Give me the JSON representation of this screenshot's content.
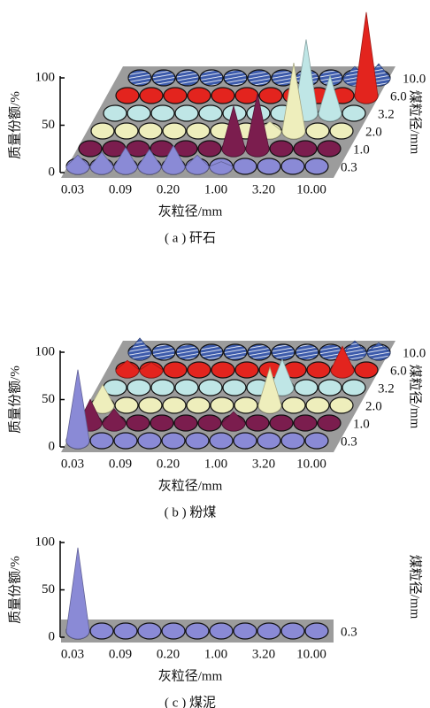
{
  "chart_data": [
    {
      "type": "cone3d",
      "caption": "( a ) 矸石",
      "y_label": "质量份额/%",
      "x_label": "灰粒径/mm",
      "z_label": "煤粒径/mm",
      "ylim": [
        0,
        100
      ],
      "yticks": [
        0,
        50,
        100
      ],
      "categories": [
        "0.03",
        null,
        "0.09",
        null,
        "0.20",
        null,
        "1.00",
        null,
        "3.20",
        null,
        "10.00"
      ],
      "series": [
        {
          "name": "0.3",
          "color": "#8a8ad6",
          "values": [
            12,
            15,
            20,
            18,
            22,
            12,
            5,
            0,
            0,
            0,
            0
          ]
        },
        {
          "name": "1.0",
          "color": "#7b1d4e",
          "values": [
            0,
            0,
            0,
            0,
            0,
            0,
            45,
            58,
            0,
            0,
            0
          ]
        },
        {
          "name": "2.0",
          "color": "#eeeebc",
          "values": [
            0,
            0,
            0,
            0,
            0,
            0,
            0,
            10,
            72,
            0,
            0
          ]
        },
        {
          "name": "3.2",
          "color": "#bfe6e6",
          "values": [
            0,
            0,
            0,
            0,
            0,
            0,
            0,
            0,
            78,
            40,
            0
          ]
        },
        {
          "name": "6.0",
          "color": "#e3241e",
          "values": [
            0,
            0,
            0,
            0,
            0,
            0,
            0,
            0,
            0,
            0,
            88
          ]
        },
        {
          "name": "10.0",
          "color": "#3d5bab",
          "pattern": "hatch",
          "values": [
            0,
            0,
            0,
            0,
            0,
            0,
            0,
            0,
            0,
            12,
            15
          ]
        }
      ]
    },
    {
      "type": "cone3d",
      "caption": "( b ) 粉煤",
      "y_label": "质量份额/%",
      "x_label": "灰粒径/mm",
      "z_label": "煤粒径/mm",
      "ylim": [
        0,
        100
      ],
      "yticks": [
        0,
        50,
        100
      ],
      "categories": [
        "0.03",
        null,
        "0.09",
        null,
        "0.20",
        null,
        "1.00",
        null,
        "3.20",
        null,
        "10.00"
      ],
      "series": [
        {
          "name": "0.3",
          "color": "#8a8ad6",
          "values": [
            75,
            0,
            0,
            0,
            0,
            0,
            0,
            0,
            0,
            0,
            0
          ]
        },
        {
          "name": "1.0",
          "color": "#7b1d4e",
          "values": [
            25,
            15,
            0,
            0,
            0,
            0,
            12,
            0,
            0,
            0,
            0
          ]
        },
        {
          "name": "2.0",
          "color": "#eeeebc",
          "values": [
            22,
            0,
            0,
            0,
            0,
            0,
            0,
            40,
            0,
            0,
            0
          ]
        },
        {
          "name": "3.2",
          "color": "#bfe6e6",
          "values": [
            0,
            0,
            0,
            0,
            0,
            0,
            0,
            30,
            0,
            0,
            0
          ]
        },
        {
          "name": "6.0",
          "color": "#e3241e",
          "values": [
            10,
            8,
            0,
            0,
            0,
            0,
            0,
            0,
            0,
            25,
            0
          ]
        },
        {
          "name": "10.0",
          "color": "#3d5bab",
          "pattern": "hatch",
          "values": [
            15,
            0,
            0,
            0,
            0,
            0,
            0,
            0,
            0,
            12,
            10
          ]
        }
      ]
    },
    {
      "type": "cone3d",
      "caption": "( c ) 煤泥",
      "y_label": "质量份额/%",
      "x_label": "灰粒径/mm",
      "z_label": "煤粒径/mm",
      "ylim": [
        0,
        100
      ],
      "yticks": [
        0,
        50,
        100
      ],
      "categories": [
        "0.03",
        null,
        "0.09",
        null,
        "0.20",
        null,
        "1.00",
        null,
        "3.20",
        null,
        "10.00"
      ],
      "series": [
        {
          "name": "0.3",
          "color": "#8a8ad6",
          "values": [
            88,
            0,
            0,
            0,
            0,
            0,
            0,
            0,
            0,
            0,
            0
          ]
        }
      ]
    }
  ]
}
